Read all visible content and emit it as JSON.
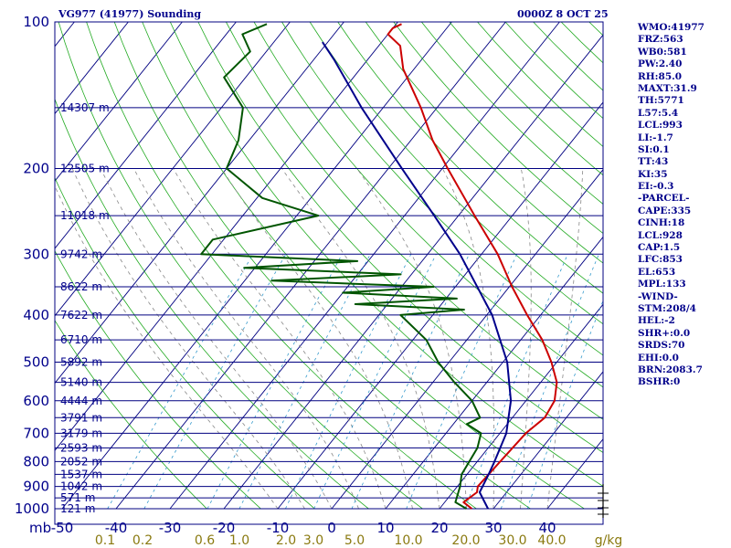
{
  "header": {
    "station": "VG977 (41977) Sounding",
    "time": "0000Z  8 OCT 25"
  },
  "indices": [
    "WMO:41977",
    "FRZ:563",
    "WB0:581",
    "PW:2.40",
    "RH:85.0",
    "MAXT:31.9",
    "TH:5771",
    "L57:5.4",
    "LCL:993",
    "LI:-1.7",
    "SI:0.1",
    "TT:43",
    "KI:35",
    "EI:-0.3",
    "-PARCEL-",
    "CAPE:335",
    "CINH:18",
    "LCL:928",
    "CAP:1.5",
    "LFC:853",
    "EL:653",
    "MPL:133",
    "-WIND-",
    "STM:208/4",
    "HEL:-2",
    "SHR+:0.0",
    "SRDS:70",
    "EHI:0.0",
    "BRN:2083.7",
    "BSHR:0"
  ],
  "chart_data": {
    "type": "line",
    "title": "VG977 (41977) Sounding",
    "subtitle": "0000Z  8 OCT 25",
    "xlabel": "",
    "ylabel": "mb",
    "x_unit_label": "g/kg",
    "xlim": [
      -50,
      50
    ],
    "ylim": [
      1000,
      100
    ],
    "y_log_scale": true,
    "pressure_ticks": [
      100,
      200,
      300,
      400,
      500,
      600,
      700,
      800,
      900,
      1000
    ],
    "temperature_ticks": [
      -50,
      -40,
      -30,
      -20,
      -10,
      0,
      10,
      20,
      30,
      40
    ],
    "mixing_ratio_ticks": [
      "0.1",
      "0.2",
      "0.6",
      "1.0",
      "2.0",
      "3.0",
      "5.0",
      "10.0",
      "20.0",
      "30.0",
      "40.0"
    ],
    "height_labels": [
      {
        "p": 150,
        "label": "14307 m"
      },
      {
        "p": 200,
        "label": "12505 m"
      },
      {
        "p": 250,
        "label": "11018 m"
      },
      {
        "p": 300,
        "label": "9742 m"
      },
      {
        "p": 350,
        "label": "8622 m"
      },
      {
        "p": 400,
        "label": "7622 m"
      },
      {
        "p": 450,
        "label": "6710 m"
      },
      {
        "p": 500,
        "label": "5892 m"
      },
      {
        "p": 550,
        "label": "5140 m"
      },
      {
        "p": 600,
        "label": "4444 m"
      },
      {
        "p": 650,
        "label": "3791 m"
      },
      {
        "p": 700,
        "label": "3179 m"
      },
      {
        "p": 750,
        "label": "2593 m"
      },
      {
        "p": 800,
        "label": "2052 m"
      },
      {
        "p": 850,
        "label": "1537 m"
      },
      {
        "p": 900,
        "label": "1042 m"
      },
      {
        "p": 950,
        "label": "571 m"
      },
      {
        "p": 1000,
        "label": "121 m"
      }
    ],
    "skew_factor": 0.8,
    "series": [
      {
        "name": "",
        "color": "#cc0000",
        "points": [
          [
            1000,
            26.0
          ],
          [
            970,
            23.5
          ],
          [
            925,
            24.5
          ],
          [
            900,
            23.8
          ],
          [
            850,
            24.0
          ],
          [
            700,
            24.8
          ],
          [
            650,
            26.0
          ],
          [
            600,
            25.3
          ],
          [
            550,
            23.0
          ],
          [
            500,
            19.0
          ],
          [
            450,
            14.0
          ],
          [
            400,
            7.5
          ],
          [
            350,
            0.5
          ],
          [
            300,
            -7.0
          ],
          [
            250,
            -17.0
          ],
          [
            200,
            -29.0
          ],
          [
            175,
            -36.0
          ],
          [
            150,
            -43.0
          ],
          [
            125,
            -52.0
          ],
          [
            112,
            -56.0
          ],
          [
            106,
            -60.0
          ],
          [
            103,
            -60.0
          ],
          [
            101,
            -59.0
          ]
        ]
      },
      {
        "name": "",
        "color": "#005500",
        "points": [
          [
            1000,
            25.0
          ],
          [
            970,
            22.0
          ],
          [
            900,
            20.5
          ],
          [
            850,
            19.0
          ],
          [
            750,
            18.0
          ],
          [
            700,
            16.5
          ],
          [
            670,
            12.5
          ],
          [
            650,
            14.0
          ],
          [
            600,
            10.0
          ],
          [
            550,
            4.0
          ],
          [
            500,
            -2.0
          ],
          [
            450,
            -7.5
          ],
          [
            400,
            -16.0
          ],
          [
            390,
            -5.0
          ],
          [
            380,
            -26.0
          ],
          [
            370,
            -8.0
          ],
          [
            360,
            -30.0
          ],
          [
            350,
            -14.0
          ],
          [
            340,
            -45.0
          ],
          [
            330,
            -22.0
          ],
          [
            320,
            -52.0
          ],
          [
            310,
            -32.0
          ],
          [
            300,
            -62.0
          ],
          [
            280,
            -62.0
          ],
          [
            250,
            -46.0
          ],
          [
            230,
            -59.0
          ],
          [
            200,
            -70.0
          ],
          [
            175,
            -72.0
          ],
          [
            150,
            -76.0
          ],
          [
            130,
            -84.0
          ],
          [
            115,
            -83.0
          ],
          [
            106,
            -87.0
          ],
          [
            101,
            -84.0
          ]
        ]
      },
      {
        "name": "",
        "color": "#00008b",
        "points": [
          [
            1000,
            29.0
          ],
          [
            925,
            25.0
          ],
          [
            850,
            24.0
          ],
          [
            800,
            23.2
          ],
          [
            700,
            21.2
          ],
          [
            600,
            17.2
          ],
          [
            500,
            10.8
          ],
          [
            400,
            1.0
          ],
          [
            300,
            -14.0
          ],
          [
            250,
            -24.5
          ],
          [
            200,
            -37.5
          ],
          [
            150,
            -54.0
          ],
          [
            120,
            -66.0
          ],
          [
            110,
            -71.0
          ]
        ]
      }
    ],
    "grid": true
  }
}
